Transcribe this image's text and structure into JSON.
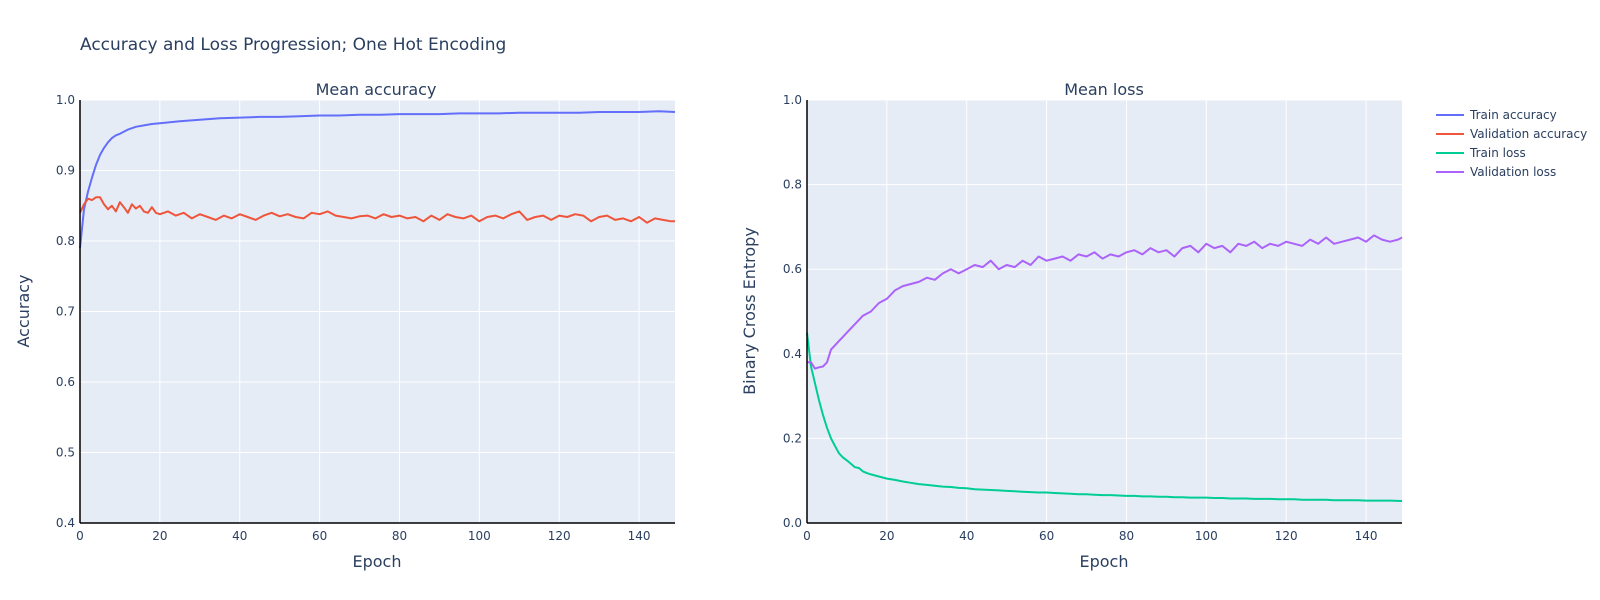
{
  "figure": {
    "title": "Accuracy and Loss Progression; One Hot Encoding"
  },
  "legend": {
    "placement": "top-right",
    "items": [
      {
        "name": "Train accuracy",
        "color": "#636efa"
      },
      {
        "name": "Validation accuracy",
        "color": "#EF553B"
      },
      {
        "name": "Train loss",
        "color": "#00cc96"
      },
      {
        "name": "Validation loss",
        "color": "#ab63fa"
      }
    ]
  },
  "chart_data": [
    {
      "type": "line",
      "title": "Mean accuracy",
      "xlabel": "Epoch",
      "ylabel": "Accuracy",
      "xlim": [
        0,
        149
      ],
      "ylim": [
        0.4,
        1.0
      ],
      "xticks": [
        0,
        20,
        40,
        60,
        80,
        100,
        120,
        140
      ],
      "yticks": [
        0.4,
        0.5,
        0.6,
        0.7,
        0.8,
        0.9,
        1.0
      ],
      "ytick_labels": [
        "0.4",
        "0.5",
        "0.6",
        "0.7",
        "0.8",
        "0.9",
        "1.0"
      ],
      "grid": true,
      "series": [
        {
          "name": "Train accuracy",
          "color": "#636efa",
          "x": [
            0,
            1,
            2,
            3,
            4,
            5,
            6,
            7,
            8,
            9,
            10,
            12,
            14,
            16,
            18,
            20,
            25,
            30,
            35,
            40,
            45,
            50,
            55,
            60,
            65,
            70,
            75,
            80,
            85,
            90,
            95,
            100,
            105,
            110,
            115,
            120,
            125,
            130,
            135,
            140,
            145,
            149
          ],
          "values": [
            0.79,
            0.845,
            0.87,
            0.89,
            0.908,
            0.922,
            0.932,
            0.94,
            0.946,
            0.95,
            0.952,
            0.958,
            0.962,
            0.964,
            0.966,
            0.967,
            0.97,
            0.972,
            0.974,
            0.975,
            0.976,
            0.976,
            0.977,
            0.978,
            0.978,
            0.979,
            0.979,
            0.98,
            0.98,
            0.98,
            0.981,
            0.981,
            0.981,
            0.982,
            0.982,
            0.982,
            0.982,
            0.983,
            0.983,
            0.983,
            0.984,
            0.983
          ]
        },
        {
          "name": "Validation accuracy",
          "color": "#EF553B",
          "x": [
            0,
            1,
            2,
            3,
            4,
            5,
            6,
            7,
            8,
            9,
            10,
            11,
            12,
            13,
            14,
            15,
            16,
            17,
            18,
            19,
            20,
            22,
            24,
            26,
            28,
            30,
            32,
            34,
            36,
            38,
            40,
            42,
            44,
            46,
            48,
            50,
            52,
            54,
            56,
            58,
            60,
            62,
            64,
            66,
            68,
            70,
            72,
            74,
            76,
            78,
            80,
            82,
            84,
            86,
            88,
            90,
            92,
            94,
            96,
            98,
            100,
            102,
            104,
            106,
            108,
            110,
            112,
            114,
            116,
            118,
            120,
            122,
            124,
            126,
            128,
            130,
            132,
            134,
            136,
            138,
            140,
            142,
            144,
            146,
            148,
            149
          ],
          "values": [
            0.84,
            0.852,
            0.86,
            0.858,
            0.862,
            0.862,
            0.852,
            0.845,
            0.85,
            0.842,
            0.855,
            0.848,
            0.84,
            0.852,
            0.846,
            0.85,
            0.842,
            0.84,
            0.848,
            0.84,
            0.838,
            0.842,
            0.836,
            0.84,
            0.832,
            0.838,
            0.834,
            0.83,
            0.836,
            0.832,
            0.838,
            0.834,
            0.83,
            0.836,
            0.84,
            0.835,
            0.838,
            0.834,
            0.832,
            0.84,
            0.838,
            0.842,
            0.836,
            0.834,
            0.832,
            0.835,
            0.836,
            0.832,
            0.838,
            0.834,
            0.836,
            0.832,
            0.834,
            0.828,
            0.836,
            0.83,
            0.838,
            0.834,
            0.832,
            0.836,
            0.828,
            0.834,
            0.836,
            0.832,
            0.838,
            0.842,
            0.83,
            0.834,
            0.836,
            0.83,
            0.836,
            0.834,
            0.838,
            0.836,
            0.828,
            0.834,
            0.836,
            0.83,
            0.832,
            0.828,
            0.834,
            0.826,
            0.832,
            0.83,
            0.828,
            0.828
          ]
        }
      ]
    },
    {
      "type": "line",
      "title": "Mean loss",
      "xlabel": "Epoch",
      "ylabel": "Binary Cross Entropy",
      "xlim": [
        0,
        149
      ],
      "ylim": [
        0,
        1.0
      ],
      "xticks": [
        0,
        20,
        40,
        60,
        80,
        100,
        120,
        140
      ],
      "yticks": [
        0,
        0.2,
        0.4,
        0.6,
        0.8,
        1.0
      ],
      "ytick_labels": [
        "0.0",
        "0.2",
        "0.4",
        "0.6",
        "0.8",
        "1.0"
      ],
      "grid": true,
      "series": [
        {
          "name": "Train loss",
          "color": "#00cc96",
          "x": [
            0,
            1,
            2,
            3,
            4,
            5,
            6,
            7,
            8,
            9,
            10,
            11,
            12,
            13,
            14,
            15,
            16,
            18,
            20,
            22,
            24,
            26,
            28,
            30,
            32,
            34,
            36,
            38,
            40,
            42,
            44,
            46,
            48,
            50,
            52,
            54,
            56,
            58,
            60,
            62,
            64,
            66,
            68,
            70,
            72,
            74,
            76,
            78,
            80,
            82,
            84,
            86,
            88,
            90,
            92,
            94,
            96,
            98,
            100,
            102,
            104,
            106,
            108,
            110,
            112,
            114,
            116,
            118,
            120,
            122,
            124,
            126,
            128,
            130,
            132,
            134,
            136,
            138,
            140,
            142,
            144,
            146,
            149
          ],
          "values": [
            0.45,
            0.37,
            0.33,
            0.29,
            0.255,
            0.225,
            0.2,
            0.182,
            0.165,
            0.155,
            0.148,
            0.14,
            0.132,
            0.13,
            0.122,
            0.118,
            0.115,
            0.11,
            0.105,
            0.102,
            0.098,
            0.095,
            0.092,
            0.09,
            0.088,
            0.086,
            0.085,
            0.083,
            0.082,
            0.08,
            0.079,
            0.078,
            0.077,
            0.076,
            0.075,
            0.074,
            0.073,
            0.072,
            0.072,
            0.071,
            0.07,
            0.069,
            0.068,
            0.068,
            0.067,
            0.066,
            0.066,
            0.065,
            0.064,
            0.064,
            0.063,
            0.063,
            0.062,
            0.062,
            0.061,
            0.061,
            0.06,
            0.06,
            0.06,
            0.059,
            0.059,
            0.058,
            0.058,
            0.058,
            0.057,
            0.057,
            0.057,
            0.056,
            0.056,
            0.056,
            0.055,
            0.055,
            0.055,
            0.055,
            0.054,
            0.054,
            0.054,
            0.054,
            0.053,
            0.053,
            0.053,
            0.053,
            0.052
          ]
        },
        {
          "name": "Validation loss",
          "color": "#ab63fa",
          "x": [
            0,
            1,
            2,
            3,
            4,
            5,
            6,
            7,
            8,
            9,
            10,
            12,
            14,
            16,
            18,
            20,
            22,
            24,
            26,
            28,
            30,
            32,
            34,
            36,
            38,
            40,
            42,
            44,
            46,
            48,
            50,
            52,
            54,
            56,
            58,
            60,
            62,
            64,
            66,
            68,
            70,
            72,
            74,
            76,
            78,
            80,
            82,
            84,
            86,
            88,
            90,
            92,
            94,
            96,
            98,
            100,
            102,
            104,
            106,
            108,
            110,
            112,
            114,
            116,
            118,
            120,
            122,
            124,
            126,
            128,
            130,
            132,
            134,
            136,
            138,
            140,
            142,
            144,
            146,
            148,
            149
          ],
          "values": [
            0.38,
            0.38,
            0.365,
            0.368,
            0.37,
            0.38,
            0.41,
            0.42,
            0.43,
            0.44,
            0.45,
            0.47,
            0.49,
            0.5,
            0.52,
            0.53,
            0.55,
            0.56,
            0.565,
            0.57,
            0.58,
            0.575,
            0.59,
            0.6,
            0.59,
            0.6,
            0.61,
            0.605,
            0.62,
            0.6,
            0.61,
            0.605,
            0.62,
            0.61,
            0.63,
            0.62,
            0.625,
            0.63,
            0.62,
            0.635,
            0.63,
            0.64,
            0.625,
            0.635,
            0.63,
            0.64,
            0.645,
            0.635,
            0.65,
            0.64,
            0.645,
            0.63,
            0.65,
            0.655,
            0.64,
            0.66,
            0.65,
            0.655,
            0.64,
            0.66,
            0.655,
            0.665,
            0.65,
            0.66,
            0.655,
            0.665,
            0.66,
            0.655,
            0.67,
            0.66,
            0.675,
            0.66,
            0.665,
            0.67,
            0.675,
            0.665,
            0.68,
            0.67,
            0.665,
            0.67,
            0.675
          ]
        }
      ]
    }
  ]
}
